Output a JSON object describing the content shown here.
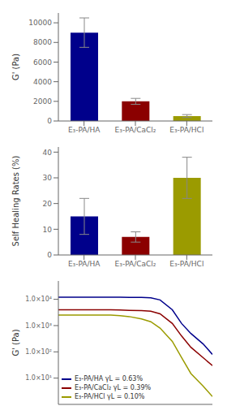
{
  "chart_data": [
    {
      "type": "bar",
      "categories": [
        "E₃-PA/HA",
        "E₃-PA/CaCl₂",
        "E₃-PA/HCl"
      ],
      "values": [
        9000,
        2000,
        500
      ],
      "errors": [
        1500,
        300,
        150
      ],
      "colors": [
        "#00008B",
        "#8B0000",
        "#9B9B00"
      ],
      "y_label": "G' (Pa)",
      "ylim": [
        0,
        11000
      ],
      "yticks": [
        0,
        2000,
        4000,
        6000,
        8000,
        10000
      ],
      "grid": false
    },
    {
      "type": "bar",
      "categories": [
        "E₃-PA/HA",
        "E₃-PA/CaCl₂",
        "E₃-PA/HCl"
      ],
      "values": [
        15,
        7,
        30
      ],
      "errors": [
        7,
        2,
        8
      ],
      "colors": [
        "#00008B",
        "#8B0000",
        "#9B9B00"
      ],
      "y_label": "Self Healing Rates (%)",
      "ylim": [
        0,
        42
      ],
      "yticks": [
        0,
        10,
        20,
        30,
        40
      ],
      "grid": false
    },
    {
      "type": "line",
      "y_label": "G' (Pa)",
      "log": true,
      "x": [
        0.01,
        0.05,
        0.1,
        0.5,
        1.0,
        2.0,
        5.0,
        10,
        20,
        50,
        100,
        200,
        500,
        1000
      ],
      "series": [
        {
          "name": "E₃-PA/HA γL = 0.63%",
          "color": "#00008B",
          "values": [
            12000,
            12000,
            12000,
            12000,
            12000,
            11900,
            11800,
            11500,
            9500,
            4000,
            1200,
            500,
            200,
            80
          ]
        },
        {
          "name": "E₃-PA/CaCl₂ γL = 0.39%",
          "color": "#8B0000",
          "values": [
            4000,
            4000,
            4000,
            4000,
            3900,
            3800,
            3700,
            3500,
            2800,
            1200,
            400,
            150,
            60,
            30
          ]
        },
        {
          "name": "E₃-PA/HCl γL = 0.10%",
          "color": "#9B9B00",
          "values": [
            2500,
            2500,
            2500,
            2500,
            2400,
            2200,
            1800,
            1400,
            800,
            250,
            60,
            15,
            5,
            2
          ]
        }
      ],
      "xlim": [
        0.01,
        1000
      ],
      "ylim": [
        1,
        50000
      ],
      "yticks": [
        {
          "value": 10,
          "label": "1.0×10¹"
        },
        {
          "value": 100,
          "label": "1.0×10²"
        },
        {
          "value": 1000,
          "label": "1.0×10³"
        },
        {
          "value": 10000,
          "label": "1.0×10⁴"
        }
      ],
      "tick_labels": "y",
      "legend": "lower left",
      "grid": false
    }
  ]
}
